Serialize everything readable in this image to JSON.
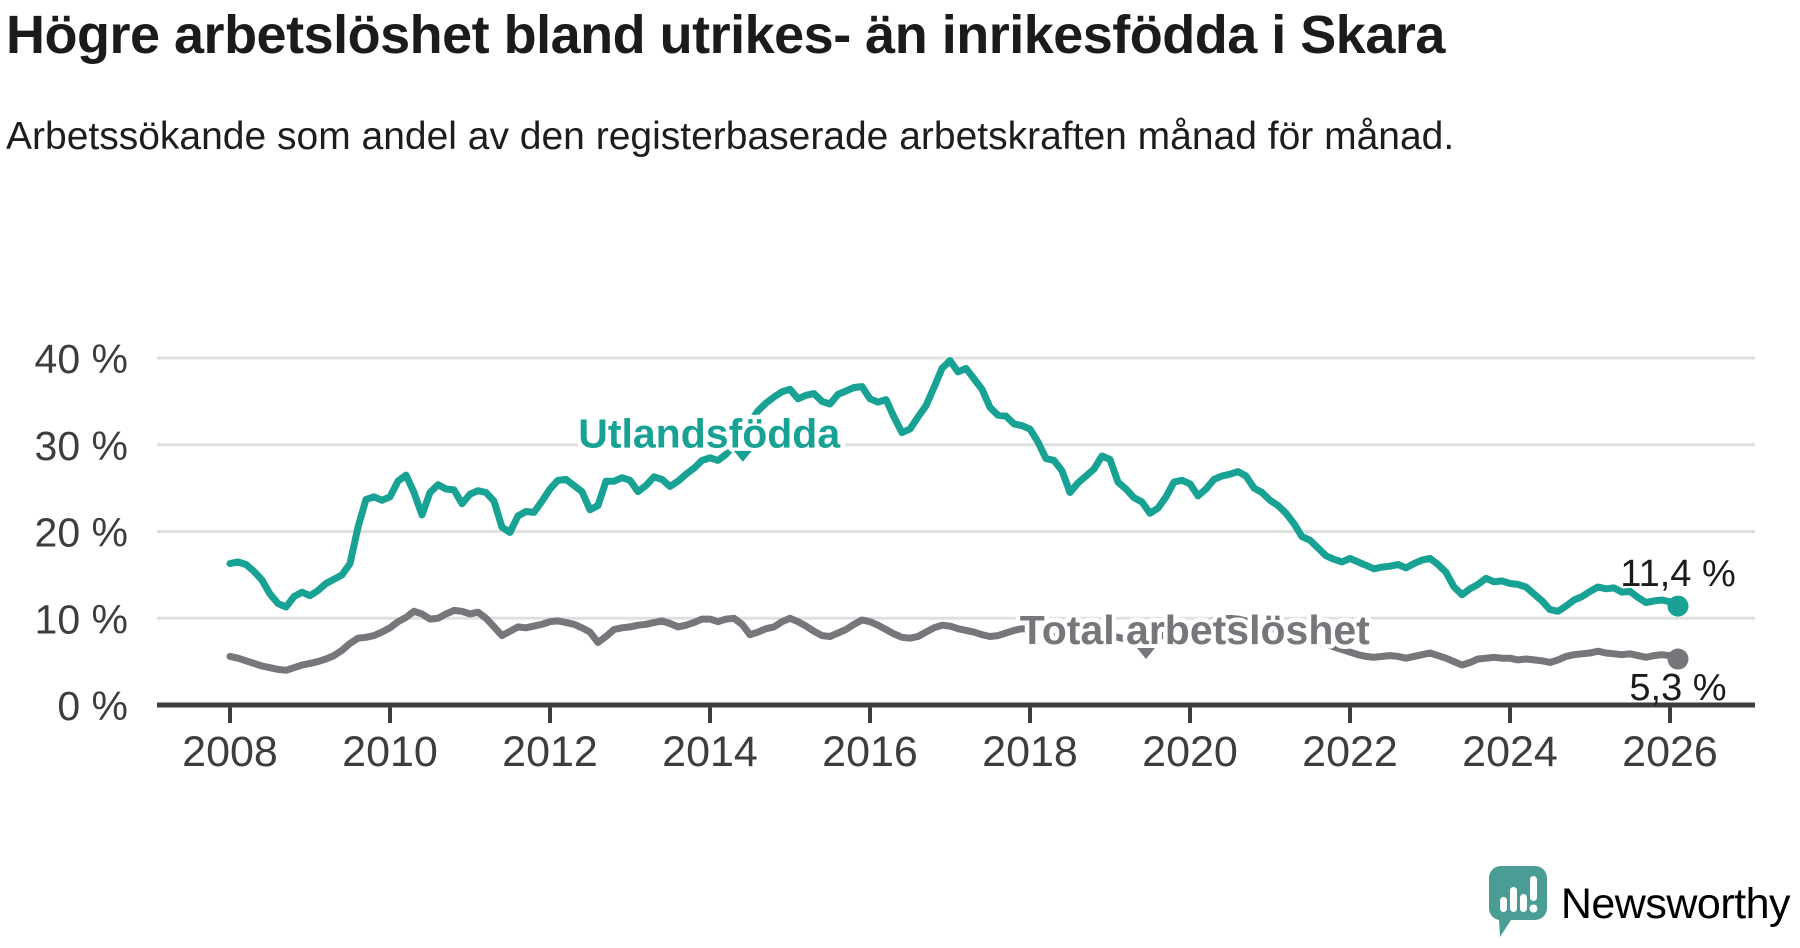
{
  "header": {
    "title": "Högre arbetslöshet bland utrikes- än inrikesfödda i Skara",
    "subtitle": "Arbetssökande som andel av den registerbaserade arbetskraften månad för månad."
  },
  "colors": {
    "foreign_born": "#17a293",
    "total": "#77767b",
    "axis": "#3d3d3d",
    "grid": "#e0e0e0",
    "title_text": "#1b1b1b",
    "end_label": "#1b1b1b",
    "logo": "#4a9d95",
    "background": "#ffffff"
  },
  "logo": {
    "text": "Newsworthy",
    "icon": "speech-bubble-bar-chart"
  },
  "chart_data": {
    "type": "line",
    "title": "Högre arbetslöshet bland utrikes- än inrikesfödda i Skara",
    "xlabel": "",
    "ylabel": "",
    "grid": "horizontal",
    "x_axis": {
      "ticks": [
        2008,
        2010,
        2012,
        2014,
        2016,
        2018,
        2020,
        2022,
        2024,
        2026
      ],
      "range": [
        2007.09,
        2027.06
      ]
    },
    "y_axis": {
      "ticks": [
        0,
        10,
        20,
        30,
        40
      ],
      "tick_suffix": " %",
      "range": [
        0,
        40
      ]
    },
    "series_labels": [
      {
        "text": "Utlandsfödda",
        "year": 2013.99,
        "pct": 31.4,
        "color_key": "foreign_born",
        "marker": {
          "year": 2014.41,
          "pct": 28.6
        }
      },
      {
        "text": "Total arbetslöshet",
        "year": 2020.06,
        "pct": 8.76,
        "color_key": "total",
        "marker": {
          "year": 2019.45,
          "pct": 5.88
        }
      }
    ],
    "series": [
      {
        "name": "Utlandsfödda",
        "color_key": "foreign_born",
        "end_label": "11,4 %",
        "end_label_side": "above",
        "x_start": 2008.0,
        "x_step": 0.1,
        "values": [
          16.3,
          16.5,
          16.2,
          15.4,
          14.4,
          12.8,
          11.7,
          11.3,
          12.5,
          13.0,
          12.6,
          13.2,
          14.0,
          14.5,
          15.0,
          16.3,
          20.5,
          23.7,
          24.0,
          23.6,
          24.0,
          25.8,
          26.5,
          24.5,
          21.9,
          24.5,
          25.4,
          24.9,
          24.8,
          23.2,
          24.3,
          24.7,
          24.5,
          23.5,
          20.5,
          19.9,
          21.8,
          22.3,
          22.2,
          23.5,
          24.9,
          25.9,
          26.0,
          25.3,
          24.6,
          22.5,
          23.0,
          25.8,
          25.8,
          26.2,
          25.9,
          24.6,
          25.3,
          26.3,
          26.0,
          25.2,
          25.8,
          26.6,
          27.3,
          28.2,
          28.5,
          28.2,
          28.9,
          30.0,
          31.4,
          32.6,
          33.9,
          34.8,
          35.5,
          36.1,
          36.4,
          35.3,
          35.7,
          35.9,
          35.0,
          34.7,
          35.8,
          36.2,
          36.6,
          36.7,
          35.3,
          34.9,
          35.2,
          33.2,
          31.4,
          31.8,
          33.2,
          34.5,
          36.6,
          38.8,
          39.7,
          38.4,
          38.8,
          37.6,
          36.4,
          34.3,
          33.4,
          33.3,
          32.4,
          32.2,
          31.8,
          30.3,
          28.4,
          28.2,
          27.0,
          24.5,
          25.6,
          26.4,
          27.2,
          28.7,
          28.3,
          25.7,
          24.9,
          23.9,
          23.4,
          22.1,
          22.7,
          24.0,
          25.7,
          25.9,
          25.5,
          24.1,
          24.9,
          26.0,
          26.4,
          26.6,
          26.9,
          26.4,
          25.0,
          24.5,
          23.6,
          23.0,
          22.1,
          20.9,
          19.4,
          19.0,
          18.1,
          17.2,
          16.8,
          16.5,
          16.9,
          16.5,
          16.1,
          15.7,
          15.9,
          16.0,
          16.2,
          15.8,
          16.3,
          16.7,
          16.9,
          16.2,
          15.3,
          13.6,
          12.7,
          13.4,
          13.9,
          14.6,
          14.2,
          14.3,
          14.0,
          13.9,
          13.6,
          12.8,
          12.0,
          11.0,
          10.8,
          11.4,
          12.1,
          12.5,
          13.1,
          13.6,
          13.4,
          13.5,
          13.0,
          13.1,
          12.4,
          11.8,
          12.0,
          12.1,
          11.9,
          11.4
        ]
      },
      {
        "name": "Total arbetslöshet",
        "color_key": "total",
        "end_label": "5,3 %",
        "end_label_side": "below",
        "x_start": 2008.0,
        "x_step": 0.1,
        "values": [
          5.6,
          5.4,
          5.1,
          4.8,
          4.5,
          4.3,
          4.1,
          4.0,
          4.3,
          4.6,
          4.8,
          5.0,
          5.3,
          5.7,
          6.3,
          7.1,
          7.7,
          7.8,
          8.0,
          8.4,
          8.9,
          9.6,
          10.1,
          10.8,
          10.5,
          9.9,
          10.0,
          10.5,
          10.9,
          10.8,
          10.5,
          10.7,
          10.0,
          9.0,
          8.0,
          8.5,
          9.0,
          8.9,
          9.1,
          9.3,
          9.6,
          9.7,
          9.5,
          9.3,
          8.9,
          8.4,
          7.2,
          7.9,
          8.7,
          8.9,
          9.0,
          9.2,
          9.3,
          9.5,
          9.7,
          9.4,
          9.0,
          9.2,
          9.5,
          9.9,
          9.9,
          9.6,
          9.9,
          10.0,
          9.3,
          8.1,
          8.4,
          8.8,
          9.0,
          9.6,
          10.0,
          9.6,
          9.1,
          8.5,
          8.0,
          7.9,
          8.3,
          8.7,
          9.3,
          9.8,
          9.6,
          9.2,
          8.7,
          8.2,
          7.8,
          7.7,
          7.9,
          8.4,
          8.9,
          9.2,
          9.1,
          8.8,
          8.6,
          8.4,
          8.1,
          7.9,
          8.0,
          8.3,
          8.6,
          8.8,
          8.7,
          8.4,
          8.1,
          7.9,
          7.7,
          7.5,
          7.6,
          7.8,
          8.0,
          8.1,
          8.0,
          7.8,
          7.6,
          7.5,
          7.6,
          7.7,
          7.9,
          8.1,
          8.3,
          8.5,
          8.6,
          8.9,
          9.3,
          9.7,
          9.9,
          10.0,
          9.9,
          9.7,
          9.5,
          9.2,
          8.9,
          8.6,
          8.3,
          8.0,
          7.7,
          7.4,
          7.2,
          7.0,
          6.7,
          6.4,
          6.1,
          5.8,
          5.6,
          5.5,
          5.6,
          5.7,
          5.6,
          5.4,
          5.6,
          5.8,
          6.0,
          5.7,
          5.4,
          5.0,
          4.6,
          4.9,
          5.3,
          5.4,
          5.5,
          5.4,
          5.4,
          5.2,
          5.3,
          5.2,
          5.1,
          4.9,
          5.2,
          5.6,
          5.8,
          5.9,
          6.0,
          6.2,
          6.0,
          5.9,
          5.8,
          5.9,
          5.7,
          5.5,
          5.7,
          5.8,
          5.7,
          5.3
        ]
      }
    ]
  }
}
